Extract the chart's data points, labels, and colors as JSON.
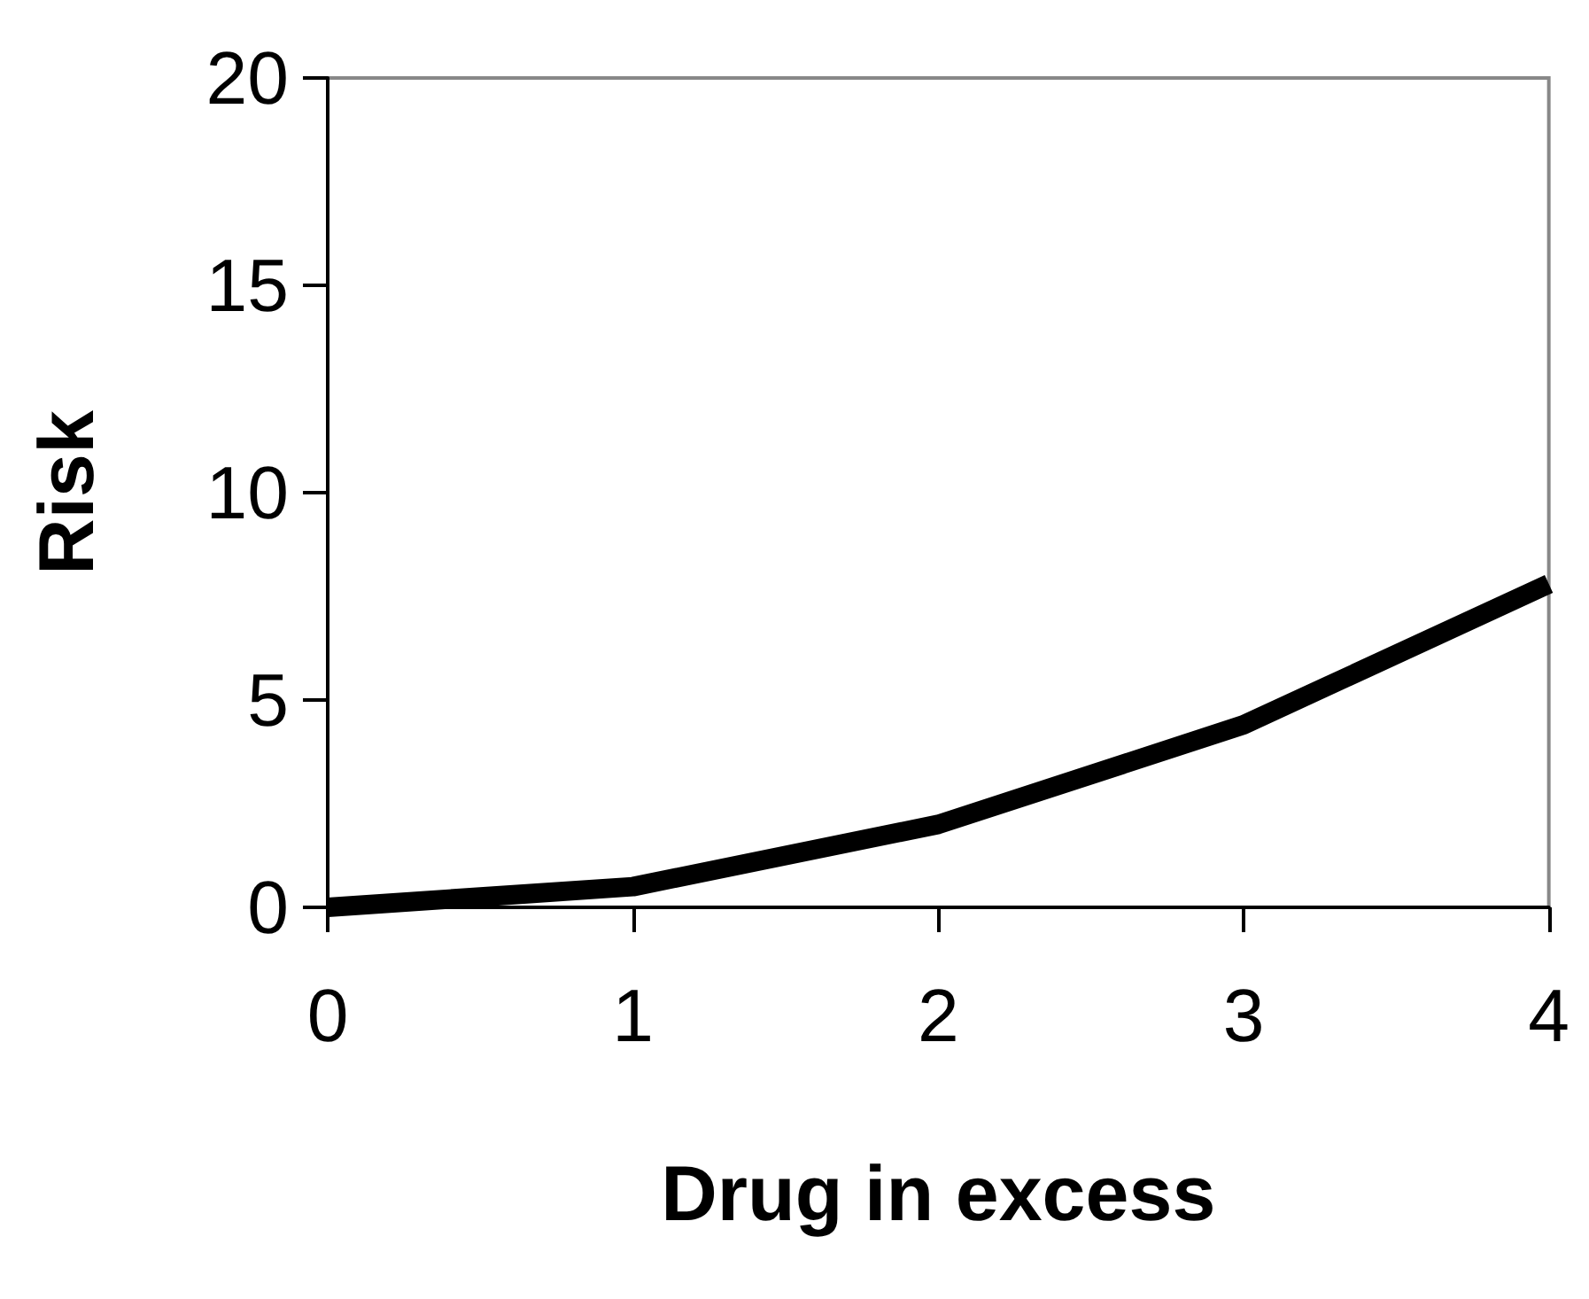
{
  "chart_data": {
    "type": "line",
    "xlabel": "Drug in excess",
    "ylabel": "Risk",
    "x": [
      0,
      1,
      2,
      3,
      4
    ],
    "series": [
      {
        "color": "#000000",
        "values": [
          0,
          0.5,
          2,
          4.4,
          7.8
        ]
      }
    ],
    "xlim": [
      0,
      4
    ],
    "xticks": [
      0,
      1,
      2,
      3,
      4
    ],
    "ylim": [
      0,
      20
    ],
    "yticks": [
      0,
      5,
      10,
      15,
      20
    ],
    "grid": false,
    "marker": "none",
    "line_style": "solid"
  }
}
